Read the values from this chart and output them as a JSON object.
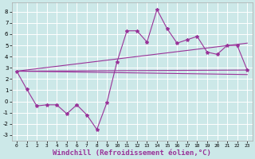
{
  "background_color": "#cce8e8",
  "grid_color": "#ffffff",
  "line_color": "#993399",
  "marker": "*",
  "marker_size": 3,
  "linewidth": 0.8,
  "xlabel": "Windchill (Refroidissement éolien,°C)",
  "xlabel_fontsize": 6.5,
  "ylabel_ticks": [
    -3,
    -2,
    -1,
    0,
    1,
    2,
    3,
    4,
    5,
    6,
    7,
    8
  ],
  "xlabel_ticks": [
    0,
    1,
    2,
    3,
    4,
    5,
    6,
    7,
    8,
    9,
    10,
    11,
    12,
    13,
    14,
    15,
    16,
    17,
    18,
    19,
    20,
    21,
    22,
    23
  ],
  "xlim": [
    -0.5,
    23.5
  ],
  "ylim": [
    -3.5,
    8.8
  ],
  "series": [
    2.7,
    1.1,
    -0.4,
    -0.3,
    -0.3,
    -1.1,
    -0.3,
    -1.2,
    -2.5,
    -0.1,
    3.5,
    6.3,
    6.3,
    5.3,
    8.2,
    6.5,
    5.2,
    5.5,
    5.8,
    4.4,
    4.2,
    5.0,
    5.0,
    2.8
  ],
  "regression_lines": [
    {
      "x0": 0,
      "y0": 2.7,
      "x1": 23,
      "y1": 2.8
    },
    {
      "x0": 0,
      "y0": 2.7,
      "x1": 23,
      "y1": 5.2
    },
    {
      "x0": 0,
      "y0": 2.7,
      "x1": 23,
      "y1": 2.5
    }
  ]
}
